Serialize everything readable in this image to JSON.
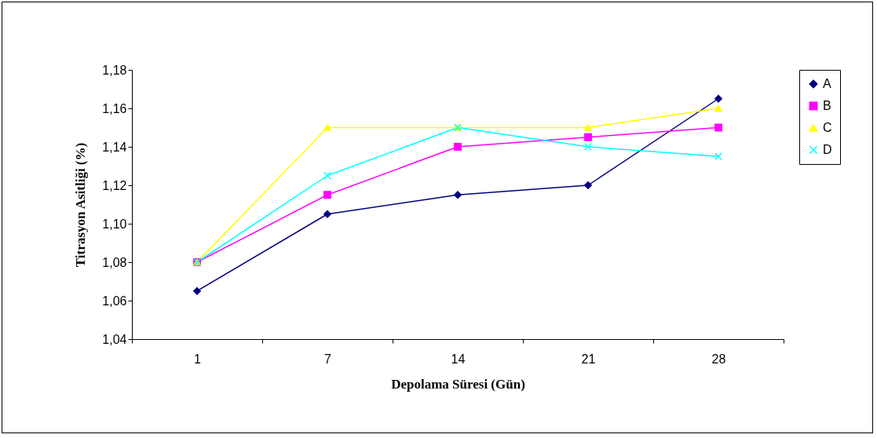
{
  "chart_data": {
    "type": "line",
    "xlabel": "Depolama Süresi (Gün)",
    "ylabel": "Titrasyon Asitliği (%)",
    "categories": [
      "1",
      "7",
      "14",
      "21",
      "28"
    ],
    "ylim": [
      1.04,
      1.18
    ],
    "yticks": [
      {
        "value": 1.04,
        "label": "1,04"
      },
      {
        "value": 1.06,
        "label": "1,06"
      },
      {
        "value": 1.08,
        "label": "1,08"
      },
      {
        "value": 1.1,
        "label": "1,10"
      },
      {
        "value": 1.12,
        "label": "1,12"
      },
      {
        "value": 1.14,
        "label": "1,14"
      },
      {
        "value": 1.16,
        "label": "1,16"
      },
      {
        "value": 1.18,
        "label": "1,18"
      }
    ],
    "grid": false,
    "legend": "right",
    "line_style": "solid",
    "series": [
      {
        "name": "A",
        "color": "#000080",
        "marker": "diamond",
        "values": [
          1.065,
          1.105,
          1.115,
          1.12,
          1.165
        ]
      },
      {
        "name": "B",
        "color": "#ff00ff",
        "marker": "square",
        "values": [
          1.08,
          1.115,
          1.14,
          1.145,
          1.15
        ]
      },
      {
        "name": "C",
        "color": "#ffff00",
        "marker": "triangle",
        "values": [
          1.08,
          1.15,
          1.15,
          1.15,
          1.16
        ]
      },
      {
        "name": "D",
        "color": "#00ffff",
        "marker": "cross",
        "values": [
          1.08,
          1.125,
          1.15,
          1.14,
          1.135
        ]
      }
    ]
  }
}
